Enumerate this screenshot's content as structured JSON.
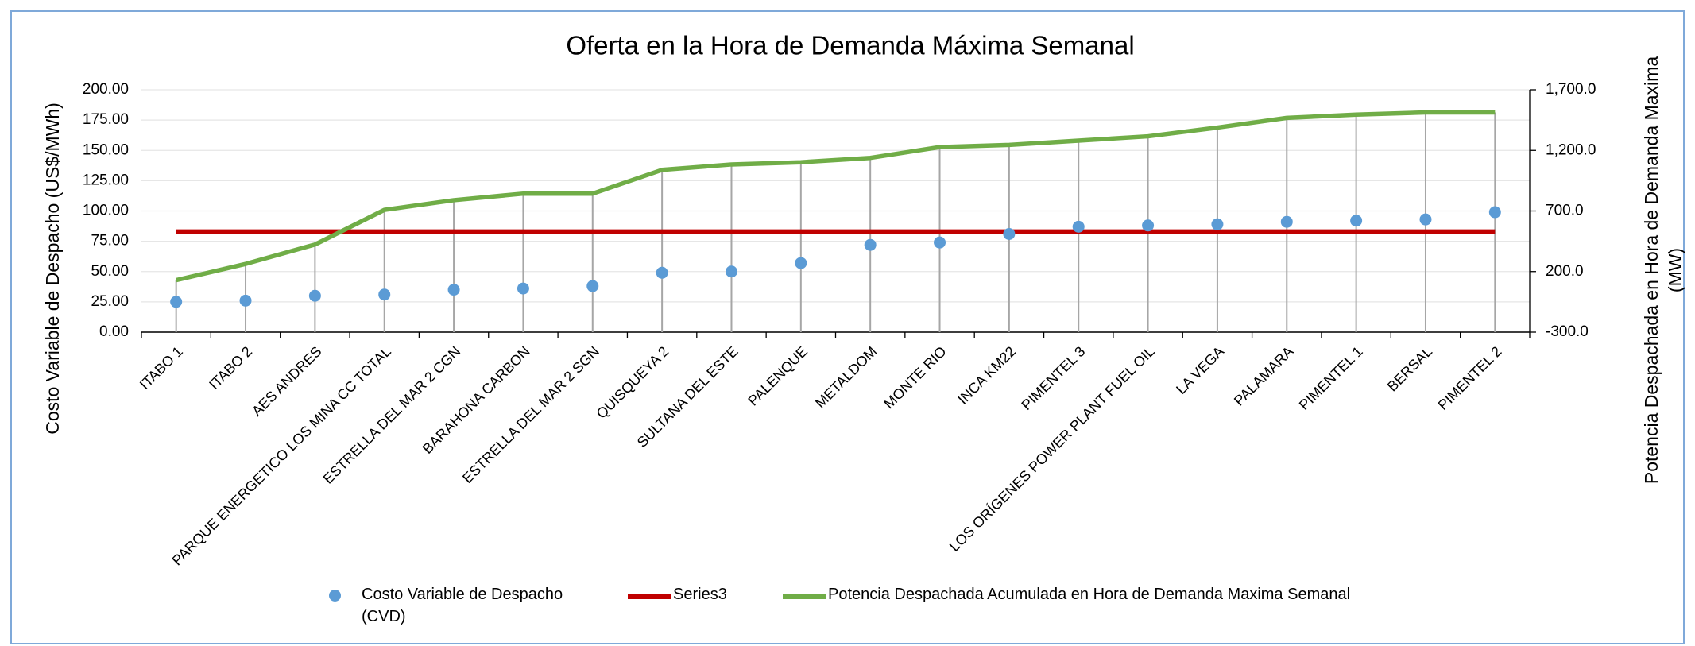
{
  "chart_data": {
    "type": "combo",
    "title": "Oferta en la Hora de Demanda Máxima Semanal",
    "y_label": "Costo Variable de Despacho (US$/MWh)",
    "y2_label": "Potencia Despachada en Hora de Demanda Maxima (MW)",
    "categories": [
      "ITABO 1",
      "ITABO 2",
      "AES ANDRES",
      "PARQUE ENERGETICO LOS MINA CC TOTAL",
      "ESTRELLA DEL MAR 2 CGN",
      "BARAHONA CARBON",
      "ESTRELLA DEL MAR 2 SGN",
      "QUISQUEYA 2",
      "SULTANA DEL ESTE",
      "PALENQUE",
      "METALDOM",
      "MONTE RIO",
      "INCA KM22",
      "PIMENTEL 3",
      "LOS ORÍGENES POWER PLANT FUEL OIL",
      "LA VEGA",
      "PALAMARA",
      "PIMENTEL 1",
      "BERSAL",
      "PIMENTEL 2"
    ],
    "series": [
      {
        "name": "Costo Variable de Despacho (CVD)",
        "type": "scatter",
        "color": "#5b9bd5",
        "values": [
          25,
          26,
          30,
          31,
          35,
          36,
          38,
          49,
          50,
          57,
          72,
          74,
          81,
          87,
          88,
          89,
          91,
          92,
          93,
          99
        ]
      },
      {
        "name": "Series3",
        "type": "line",
        "color": "#c00000",
        "values": [
          83,
          83,
          83,
          83,
          83,
          83,
          83,
          83,
          83,
          83,
          83,
          83,
          83,
          83,
          83,
          83,
          83,
          83,
          83,
          83
        ]
      },
      {
        "name": "Potencia Despachada Acumulada en Hora de Demanda Maxima Semanal",
        "type": "line",
        "axis": "y2",
        "color": "#70ad47",
        "values": [
          129,
          263,
          423,
          709,
          789,
          843,
          843,
          1039,
          1084,
          1102,
          1138,
          1227,
          1245,
          1280,
          1316,
          1388,
          1468,
          1495,
          1513,
          1513
        ]
      }
    ],
    "ylim": [
      0,
      200
    ],
    "yticks": [
      {
        "value": 0,
        "label": "0.00"
      },
      {
        "value": 25,
        "label": "25.00"
      },
      {
        "value": 50,
        "label": "50.00"
      },
      {
        "value": 75,
        "label": "75.00"
      },
      {
        "value": 100,
        "label": "100.00"
      },
      {
        "value": 125,
        "label": "125.00"
      },
      {
        "value": 150,
        "label": "150.00"
      },
      {
        "value": 175,
        "label": "175.00"
      },
      {
        "value": 200,
        "label": "200.00"
      }
    ],
    "y2lim": [
      -300,
      1700
    ],
    "y2ticks": [
      {
        "value": -300,
        "label": "-300.0"
      },
      {
        "value": 200,
        "label": "200.0"
      },
      {
        "value": 700,
        "label": "700.0"
      },
      {
        "value": 1200,
        "label": "1,200.0"
      },
      {
        "value": 1700,
        "label": "1,700.0"
      }
    ],
    "grid": true,
    "drop_lines": true,
    "legend": "bottom"
  }
}
